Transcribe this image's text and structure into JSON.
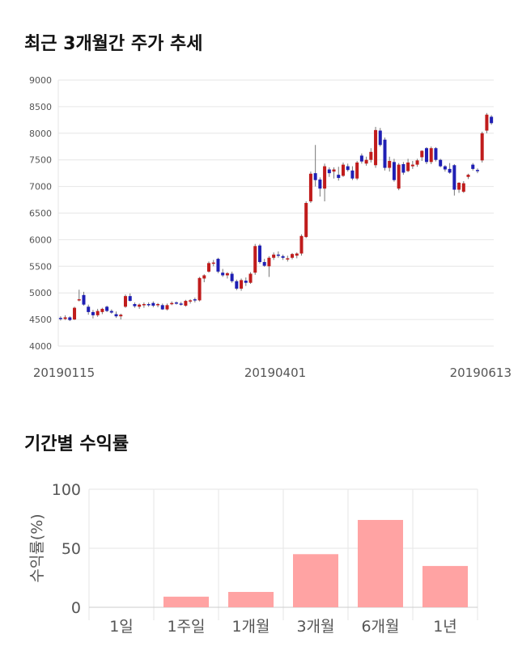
{
  "sections": {
    "stock_title": "최근 3개월간 주가 추세",
    "returns_title": "기간별 수익률"
  },
  "chart_data": [
    {
      "type": "candlestick",
      "yticks": [
        4000,
        4500,
        5000,
        5500,
        6000,
        6500,
        7000,
        7500,
        8000,
        8500,
        9000
      ],
      "ylim": [
        4000,
        9000
      ],
      "x_tick_labels": [
        "20190115",
        "20190401",
        "20190613"
      ],
      "up_color": "#c01c1c",
      "down_color": "#1f1fb4",
      "ohlc": [
        [
          4530,
          4560,
          4480,
          4510
        ],
        [
          4510,
          4580,
          4490,
          4540
        ],
        [
          4540,
          4560,
          4470,
          4490
        ],
        [
          4500,
          4740,
          4490,
          4720
        ],
        [
          4870,
          5060,
          4840,
          4880
        ],
        [
          4960,
          5020,
          4760,
          4780
        ],
        [
          4740,
          4780,
          4590,
          4640
        ],
        [
          4640,
          4680,
          4520,
          4580
        ],
        [
          4580,
          4700,
          4550,
          4660
        ],
        [
          4640,
          4720,
          4600,
          4700
        ],
        [
          4740,
          4760,
          4640,
          4660
        ],
        [
          4660,
          4690,
          4610,
          4630
        ],
        [
          4600,
          4650,
          4530,
          4560
        ],
        [
          4560,
          4610,
          4500,
          4590
        ],
        [
          4740,
          4970,
          4720,
          4940
        ],
        [
          4940,
          4990,
          4840,
          4850
        ],
        [
          4790,
          4820,
          4720,
          4750
        ],
        [
          4740,
          4800,
          4700,
          4780
        ],
        [
          4770,
          4820,
          4720,
          4790
        ],
        [
          4790,
          4820,
          4740,
          4780
        ],
        [
          4810,
          4840,
          4730,
          4760
        ],
        [
          4770,
          4810,
          4730,
          4790
        ],
        [
          4770,
          4800,
          4680,
          4690
        ],
        [
          4690,
          4800,
          4670,
          4770
        ],
        [
          4800,
          4840,
          4770,
          4810
        ],
        [
          4820,
          4840,
          4780,
          4800
        ],
        [
          4800,
          4830,
          4760,
          4780
        ],
        [
          4760,
          4870,
          4740,
          4850
        ],
        [
          4840,
          4880,
          4800,
          4860
        ],
        [
          4880,
          4910,
          4820,
          4860
        ],
        [
          4860,
          5300,
          4840,
          5280
        ],
        [
          5270,
          5350,
          5200,
          5330
        ],
        [
          5400,
          5590,
          5380,
          5560
        ],
        [
          5570,
          5620,
          5500,
          5570
        ],
        [
          5640,
          5660,
          5370,
          5400
        ],
        [
          5380,
          5450,
          5300,
          5330
        ],
        [
          5330,
          5390,
          5270,
          5370
        ],
        [
          5360,
          5400,
          5190,
          5220
        ],
        [
          5220,
          5250,
          5050,
          5080
        ],
        [
          5080,
          5270,
          5040,
          5240
        ],
        [
          5230,
          5290,
          5130,
          5190
        ],
        [
          5190,
          5390,
          5170,
          5360
        ],
        [
          5380,
          5920,
          5340,
          5880
        ],
        [
          5890,
          5920,
          5550,
          5580
        ],
        [
          5580,
          5640,
          5490,
          5510
        ],
        [
          5500,
          5690,
          5300,
          5660
        ],
        [
          5660,
          5760,
          5620,
          5720
        ],
        [
          5720,
          5780,
          5660,
          5710
        ],
        [
          5690,
          5720,
          5620,
          5660
        ],
        [
          5640,
          5700,
          5590,
          5650
        ],
        [
          5660,
          5750,
          5630,
          5730
        ],
        [
          5700,
          5760,
          5650,
          5740
        ],
        [
          5740,
          6100,
          5700,
          6070
        ],
        [
          6050,
          6720,
          6030,
          6690
        ],
        [
          6720,
          7280,
          6690,
          7240
        ],
        [
          7250,
          7780,
          7000,
          7120
        ],
        [
          7130,
          7170,
          6810,
          6960
        ],
        [
          6960,
          7430,
          6720,
          7380
        ],
        [
          7320,
          7360,
          7180,
          7250
        ],
        [
          7280,
          7360,
          7150,
          7320
        ],
        [
          7220,
          7370,
          7110,
          7160
        ],
        [
          7200,
          7450,
          7180,
          7410
        ],
        [
          7380,
          7430,
          7280,
          7310
        ],
        [
          7300,
          7380,
          7120,
          7150
        ],
        [
          7150,
          7480,
          7120,
          7450
        ],
        [
          7580,
          7620,
          7430,
          7470
        ],
        [
          7430,
          7560,
          7390,
          7500
        ],
        [
          7500,
          7720,
          7450,
          7650
        ],
        [
          7400,
          8120,
          7350,
          8060
        ],
        [
          8050,
          8100,
          7750,
          7780
        ],
        [
          7880,
          7920,
          7300,
          7350
        ],
        [
          7350,
          7560,
          7280,
          7480
        ],
        [
          7460,
          7520,
          7090,
          7120
        ],
        [
          6960,
          7440,
          6930,
          7410
        ],
        [
          7420,
          7460,
          7220,
          7260
        ],
        [
          7290,
          7520,
          7270,
          7450
        ],
        [
          7380,
          7480,
          7330,
          7410
        ],
        [
          7410,
          7520,
          7370,
          7490
        ],
        [
          7550,
          7680,
          7480,
          7670
        ],
        [
          7720,
          7740,
          7420,
          7460
        ],
        [
          7460,
          7750,
          7420,
          7720
        ],
        [
          7720,
          7740,
          7470,
          7500
        ],
        [
          7500,
          7520,
          7360,
          7380
        ],
        [
          7380,
          7400,
          7280,
          7320
        ],
        [
          7330,
          7440,
          7240,
          7260
        ],
        [
          7400,
          7420,
          6830,
          6940
        ],
        [
          6940,
          7080,
          6880,
          7070
        ],
        [
          6900,
          7100,
          6880,
          7060
        ],
        [
          7180,
          7240,
          7140,
          7220
        ],
        [
          7410,
          7440,
          7300,
          7330
        ],
        [
          7310,
          7340,
          7250,
          7290
        ],
        [
          7490,
          8030,
          7450,
          8000
        ],
        [
          8050,
          8380,
          8000,
          8350
        ],
        [
          8310,
          8340,
          8160,
          8190
        ]
      ]
    },
    {
      "type": "bar",
      "categories": [
        "1일",
        "1주일",
        "1개월",
        "3개월",
        "6개월",
        "1년"
      ],
      "values": [
        0,
        9,
        13,
        45,
        74,
        35
      ],
      "ylabel": "수익률(%)",
      "yticks": [
        0,
        50,
        100
      ],
      "ylim": [
        0,
        100
      ],
      "bar_color": "#ffa3a3"
    }
  ]
}
